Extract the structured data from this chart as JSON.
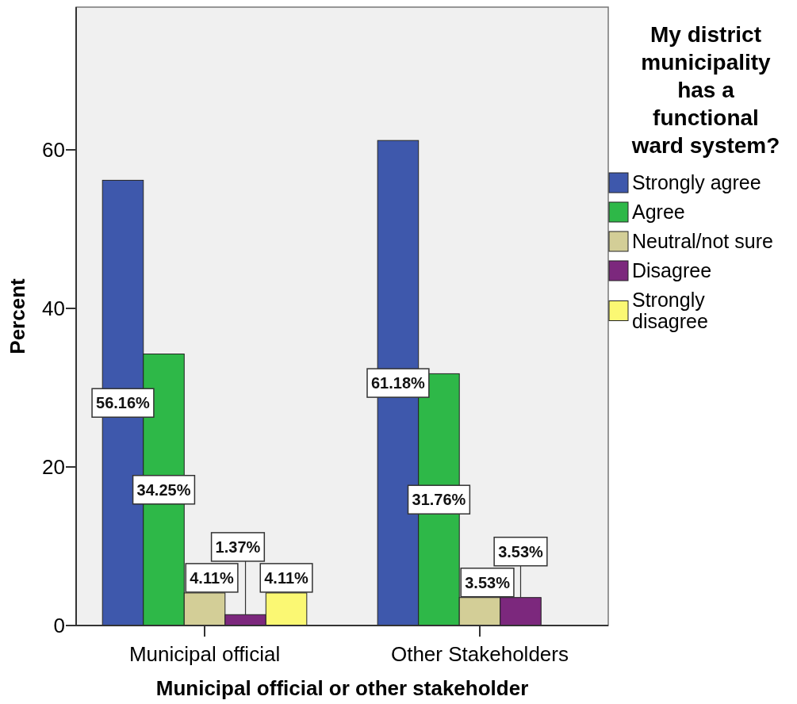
{
  "chart_data": {
    "type": "bar",
    "xlabel": "Municipal official or other stakeholder",
    "ylabel": "Percent",
    "legend_title": "My district municipality has a functional ward system?",
    "legend": "right",
    "categories": [
      "Municipal official",
      "Other Stakeholders"
    ],
    "series": [
      {
        "name": "Strongly agree",
        "color": "#3e58ac",
        "values": [
          56.16,
          61.18
        ],
        "value_labels": [
          "56.16%",
          "61.18%"
        ]
      },
      {
        "name": "Agree",
        "color": "#2eb848",
        "values": [
          34.25,
          31.76
        ],
        "value_labels": [
          "34.25%",
          "31.76%"
        ]
      },
      {
        "name": "Neutral/not sure",
        "color": "#d3ce97",
        "values": [
          4.11,
          3.53
        ],
        "value_labels": [
          "4.11%",
          "3.53%"
        ]
      },
      {
        "name": "Disagree",
        "color": "#7c287d",
        "values": [
          1.37,
          3.53
        ],
        "value_labels": [
          "1.37%",
          "3.53%"
        ]
      },
      {
        "name": "Strongly disagree",
        "color": "#fbf873",
        "values": [
          4.11,
          null
        ],
        "value_labels": [
          "4.11%",
          null
        ]
      }
    ],
    "ylim": [
      0,
      78
    ],
    "yticks": [
      0,
      20,
      40,
      60
    ]
  }
}
